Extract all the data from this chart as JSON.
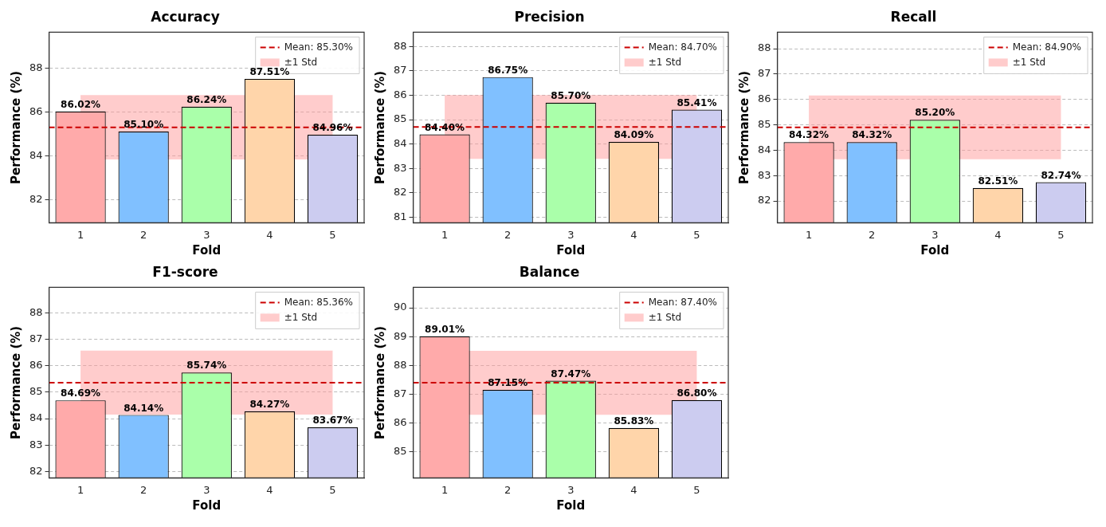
{
  "chart_data": [
    {
      "type": "bar",
      "title": "Accuracy",
      "xlabel": "Fold",
      "ylabel": "Performance (%)",
      "categories": [
        "1",
        "2",
        "3",
        "4",
        "5"
      ],
      "values": [
        86.02,
        85.1,
        86.24,
        87.51,
        84.96
      ],
      "value_labels": [
        "86.02%",
        "85.10%",
        "86.24%",
        "87.51%",
        "84.96%"
      ],
      "colors": [
        "#ffaaaa",
        "#80c0ff",
        "#aaffaa",
        "#ffd5aa",
        "#ccccf0"
      ],
      "ylim": [
        80.94,
        89.64
      ],
      "yticks": [
        82,
        84,
        86,
        88
      ],
      "grid": "y",
      "legend": "top right",
      "ref_lines": [
        {
          "axis": "y",
          "value": 85.3,
          "label": "Mean: 85.30%",
          "color": "#cc0000",
          "line_style": "dashed"
        }
      ],
      "bands": [
        {
          "axis": "y",
          "from": 83.83,
          "to": 86.77,
          "label": "±1 Std",
          "color": "#ff9999"
        }
      ]
    },
    {
      "type": "bar",
      "title": "Precision",
      "xlabel": "Fold",
      "ylabel": "Performance (%)",
      "categories": [
        "1",
        "2",
        "3",
        "4",
        "5"
      ],
      "values": [
        84.4,
        86.75,
        85.7,
        84.09,
        85.41
      ],
      "value_labels": [
        "84.40%",
        "86.75%",
        "85.70%",
        "84.09%",
        "85.41%"
      ],
      "colors": [
        "#ffaaaa",
        "#80c0ff",
        "#aaffaa",
        "#ffd5aa",
        "#ccccf0"
      ],
      "ylim": [
        80.77,
        88.59
      ],
      "yticks": [
        81,
        82,
        83,
        84,
        85,
        86,
        87,
        88
      ],
      "grid": "y",
      "legend": "top right",
      "ref_lines": [
        {
          "axis": "y",
          "value": 84.7,
          "label": "Mean: 84.70%",
          "color": "#cc0000",
          "line_style": "dashed"
        }
      ],
      "bands": [
        {
          "axis": "y",
          "from": 83.39,
          "to": 86.01,
          "label": "±1 Std",
          "color": "#ff9999"
        }
      ]
    },
    {
      "type": "bar",
      "title": "Recall",
      "xlabel": "Fold",
      "ylabel": "Performance (%)",
      "categories": [
        "1",
        "2",
        "3",
        "4",
        "5"
      ],
      "values": [
        84.32,
        84.32,
        85.2,
        82.51,
        82.74
      ],
      "value_labels": [
        "84.32%",
        "84.32%",
        "85.20%",
        "82.51%",
        "82.74%"
      ],
      "colors": [
        "#ffaaaa",
        "#80c0ff",
        "#aaffaa",
        "#ffd5aa",
        "#ccccf0"
      ],
      "ylim": [
        81.14,
        88.65
      ],
      "yticks": [
        82,
        83,
        84,
        85,
        86,
        87,
        88
      ],
      "grid": "y",
      "legend": "top right",
      "ref_lines": [
        {
          "axis": "y",
          "value": 84.9,
          "label": "Mean: 84.90%",
          "color": "#cc0000",
          "line_style": "dashed"
        }
      ],
      "bands": [
        {
          "axis": "y",
          "from": 83.64,
          "to": 86.16,
          "label": "±1 Std",
          "color": "#ff9999"
        }
      ]
    },
    {
      "type": "bar",
      "title": "F1-score",
      "xlabel": "Fold",
      "ylabel": "Performance (%)",
      "categories": [
        "1",
        "2",
        "3",
        "4",
        "5"
      ],
      "values": [
        84.69,
        84.14,
        85.74,
        84.27,
        83.67
      ],
      "value_labels": [
        "84.69%",
        "84.14%",
        "85.74%",
        "84.27%",
        "83.67%"
      ],
      "colors": [
        "#ffaaaa",
        "#80c0ff",
        "#aaffaa",
        "#ffd5aa",
        "#ccccf0"
      ],
      "ylim": [
        81.76,
        88.96
      ],
      "yticks": [
        82,
        83,
        84,
        85,
        86,
        87,
        88
      ],
      "grid": "y",
      "legend": "top right",
      "ref_lines": [
        {
          "axis": "y",
          "value": 85.36,
          "label": "Mean: 85.36%",
          "color": "#cc0000",
          "line_style": "dashed"
        }
      ],
      "bands": [
        {
          "axis": "y",
          "from": 84.15,
          "to": 86.57,
          "label": "±1 Std",
          "color": "#ff9999"
        }
      ]
    },
    {
      "type": "bar",
      "title": "Balance",
      "xlabel": "Fold",
      "ylabel": "Performance (%)",
      "categories": [
        "1",
        "2",
        "3",
        "4",
        "5"
      ],
      "values": [
        89.01,
        87.15,
        87.47,
        85.83,
        86.8
      ],
      "value_labels": [
        "89.01%",
        "87.15%",
        "87.47%",
        "85.83%",
        "86.80%"
      ],
      "colors": [
        "#ffaaaa",
        "#80c0ff",
        "#aaffaa",
        "#ffd5aa",
        "#ccccf0"
      ],
      "ylim": [
        84.1,
        90.71
      ],
      "yticks": [
        85,
        86,
        87,
        88,
        89,
        90
      ],
      "grid": "y",
      "legend": "top right",
      "ref_lines": [
        {
          "axis": "y",
          "value": 87.4,
          "label": "Mean: 87.40%",
          "color": "#cc0000",
          "line_style": "dashed"
        }
      ],
      "bands": [
        {
          "axis": "y",
          "from": 86.29,
          "to": 88.51,
          "label": "±1 Std",
          "color": "#ff9999"
        }
      ]
    }
  ]
}
